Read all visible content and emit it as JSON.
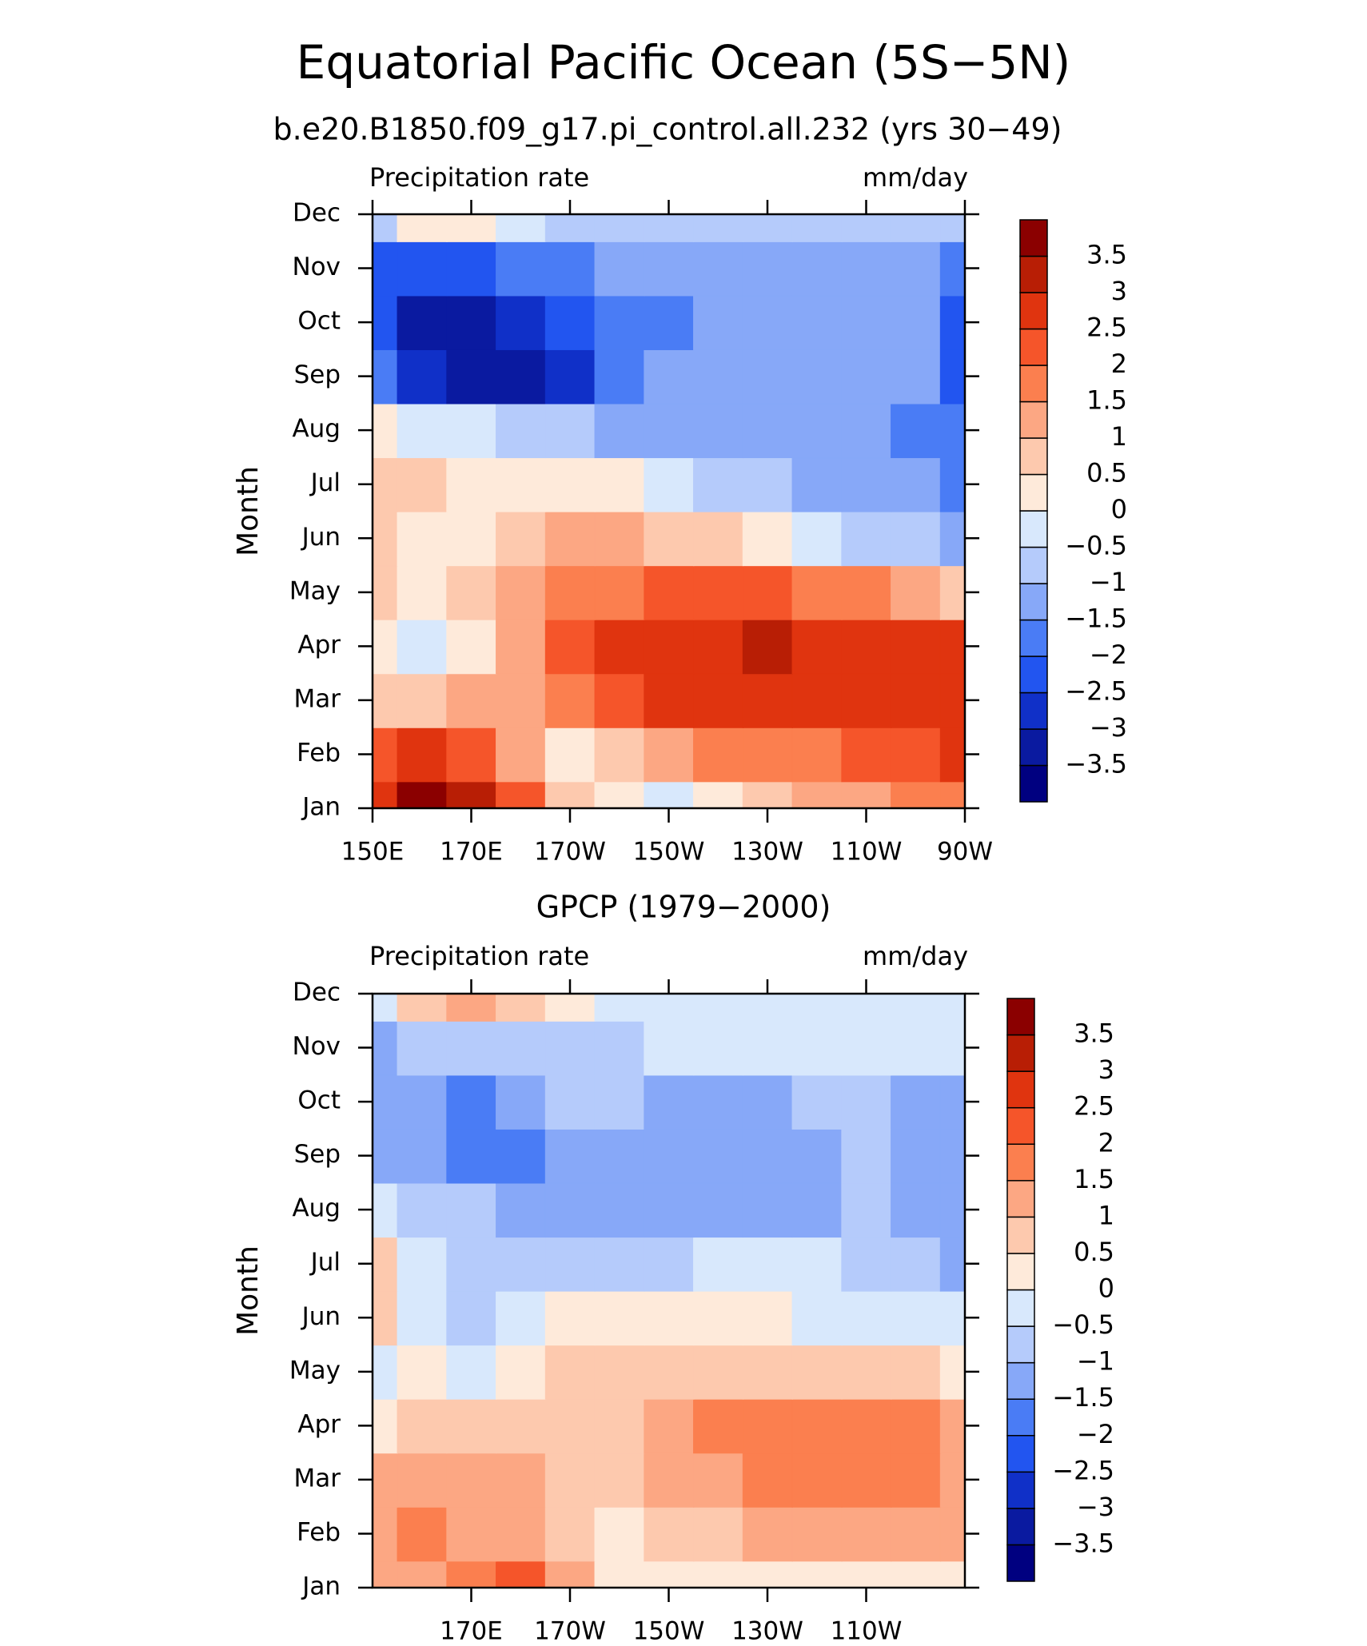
{
  "chart_data": [
    {
      "type": "contour",
      "title": "Equatorial Pacific Ocean (5S−5N)",
      "subtitle": "b.e20.B1850.f09_g17.pi_control.all.232 (yrs 30−49)",
      "left_label": "Precipitation rate",
      "right_label": "mm/day",
      "ylabel": "Month",
      "x": [
        150,
        160,
        170,
        180,
        190,
        200,
        210,
        220,
        230,
        240,
        250,
        260,
        270
      ],
      "xlim": [
        150,
        270
      ],
      "xticks": [
        {
          "value": 150,
          "label": "150E"
        },
        {
          "value": 170,
          "label": "170E"
        },
        {
          "value": 190,
          "label": "170W"
        },
        {
          "value": 210,
          "label": "150W"
        },
        {
          "value": 230,
          "label": "130W"
        },
        {
          "value": 250,
          "label": "110W"
        },
        {
          "value": 270,
          "label": "90W"
        }
      ],
      "categories": [
        "Jan",
        "Feb",
        "Mar",
        "Apr",
        "May",
        "Jun",
        "Jul",
        "Aug",
        "Sep",
        "Oct",
        "Nov",
        "Dec"
      ],
      "z": [
        [
          2.5,
          3.5,
          3,
          2,
          0.5,
          0,
          -0.3,
          0.3,
          0.8,
          1,
          1.3,
          1.5,
          1.5
        ],
        [
          2.2,
          2.5,
          2,
          1,
          0.3,
          0.8,
          1.2,
          1.5,
          1.8,
          1.8,
          2,
          2.2,
          2.5
        ],
        [
          0.5,
          0.8,
          1,
          1.2,
          1.5,
          2,
          2.5,
          2.7,
          2.7,
          2.8,
          2.8,
          2.7,
          2.8
        ],
        [
          0,
          -0.2,
          0.3,
          1,
          2,
          2.5,
          2.7,
          2.8,
          3.1,
          2.8,
          2.7,
          2.5,
          2.5
        ],
        [
          0.5,
          0.3,
          0.5,
          1,
          1.5,
          1.8,
          2,
          2,
          2,
          1.8,
          1.5,
          1.2,
          0.5
        ],
        [
          0.5,
          0,
          0.3,
          0.7,
          1,
          1,
          0.8,
          0.5,
          0.2,
          -0.2,
          -0.7,
          -1,
          -1.2
        ],
        [
          0.7,
          0.5,
          0.4,
          0.3,
          0.2,
          0,
          -0.3,
          -0.6,
          -0.9,
          -1.1,
          -1.2,
          -1.3,
          -1.6
        ],
        [
          0.2,
          -0.3,
          -0.5,
          -0.7,
          -0.9,
          -1.1,
          -1.2,
          -1.3,
          -1.3,
          -1.3,
          -1.3,
          -1.6,
          -2
        ],
        [
          -2,
          -2.7,
          -3.3,
          -3.2,
          -2.7,
          -2,
          -1.5,
          -1.3,
          -1.3,
          -1.3,
          -1.3,
          -1.5,
          -2.2
        ],
        [
          -2.5,
          -3.1,
          -3.2,
          -2.7,
          -2.4,
          -2,
          -1.6,
          -1.2,
          -1.2,
          -1.2,
          -1.2,
          -1.3,
          -2.2
        ],
        [
          -2.3,
          -2.5,
          -2.2,
          -2,
          -1.7,
          -1.5,
          -1.2,
          -1.2,
          -1.2,
          -1.2,
          -1.2,
          -1.2,
          -1.8
        ],
        [
          -0.7,
          0,
          0.3,
          -0.5,
          -0.7,
          -0.8,
          -0.8,
          -0.8,
          -0.8,
          -0.8,
          -0.8,
          -0.8,
          -0.8
        ]
      ],
      "levels": [
        {
          "value": -3.5,
          "label": "−3.5"
        },
        {
          "value": -3,
          "label": "−3"
        },
        {
          "value": -2.5,
          "label": "−2.5"
        },
        {
          "value": -2,
          "label": "−2"
        },
        {
          "value": -1.5,
          "label": "−1.5"
        },
        {
          "value": -1,
          "label": "−1"
        },
        {
          "value": -0.5,
          "label": "−0.5"
        },
        0,
        0.5,
        1,
        1.5,
        2,
        2.5,
        3,
        3.5
      ],
      "colors": [
        "#000080",
        "#0a1aa0",
        "#1030c8",
        "#2255f0",
        "#4a7cf5",
        "#87a8f8",
        "#b5cbfb",
        "#d8e8fc",
        "#feeada",
        "#fdc9ae",
        "#fca783",
        "#fb7f4f",
        "#f5552a",
        "#e0340f",
        "#b81e05",
        "#8b0000"
      ]
    },
    {
      "type": "contour",
      "title": "GPCP (1979−2000)",
      "left_label": "Precipitation rate",
      "right_label": "mm/day",
      "ylabel": "Month",
      "x": [
        150,
        160,
        170,
        180,
        190,
        200,
        210,
        220,
        230,
        240,
        250,
        260,
        270
      ],
      "xlim": [
        150,
        270
      ],
      "xticks": [
        {
          "value": 170,
          "label": "170E"
        },
        {
          "value": 190,
          "label": "170W"
        },
        {
          "value": 210,
          "label": "150W"
        },
        {
          "value": 230,
          "label": "130W"
        },
        {
          "value": 250,
          "label": "110W"
        }
      ],
      "categories": [
        "Jan",
        "Feb",
        "Mar",
        "Apr",
        "May",
        "Jun",
        "Jul",
        "Aug",
        "Sep",
        "Oct",
        "Nov",
        "Dec"
      ],
      "z": [
        [
          1,
          1.2,
          1.5,
          2,
          1,
          0.3,
          0.2,
          0.1,
          0.1,
          0.1,
          0.2,
          0.2,
          0.3
        ],
        [
          1.2,
          1.5,
          1,
          1.3,
          0.8,
          0.4,
          0.7,
          0.8,
          1,
          1.1,
          1.1,
          1.2,
          1.3
        ],
        [
          1,
          1.3,
          1.2,
          1,
          0.5,
          0.6,
          1.1,
          1.4,
          1.6,
          1.7,
          1.6,
          1.8,
          1.4
        ],
        [
          0.4,
          0.8,
          0.7,
          0.6,
          0.8,
          0.8,
          1.2,
          1.6,
          1.8,
          1.9,
          1.6,
          1.9,
          1.3
        ],
        [
          -0.3,
          0,
          -0.4,
          0.1,
          0.6,
          0.8,
          0.9,
          0.9,
          0.8,
          0.7,
          0.6,
          0.5,
          0.3
        ],
        [
          0.5,
          -0.3,
          -0.6,
          -0.5,
          0.2,
          0.4,
          0.3,
          0.1,
          0,
          -0.1,
          -0.2,
          -0.3,
          -0.4
        ],
        [
          0.6,
          -0.4,
          -0.8,
          -0.7,
          -0.6,
          -0.6,
          -0.6,
          -0.5,
          -0.5,
          -0.5,
          -0.6,
          -0.7,
          -1.1
        ],
        [
          -0.5,
          -0.8,
          -1,
          -1.1,
          -1.1,
          -1.1,
          -1.3,
          -1.3,
          -1.3,
          -1.3,
          -1,
          -1.2,
          -1.3
        ],
        [
          -1.2,
          -1.3,
          -1.7,
          -1.6,
          -1.1,
          -1.1,
          -1.4,
          -1.4,
          -1.4,
          -1.4,
          -0.9,
          -1.2,
          -1.3
        ],
        [
          -1.1,
          -1.3,
          -1.7,
          -1.3,
          -0.9,
          -0.9,
          -1.2,
          -1.2,
          -1.2,
          -0.9,
          -0.8,
          -1.1,
          -1.2
        ],
        [
          -1.1,
          -0.7,
          -0.8,
          -0.6,
          -0.6,
          -0.6,
          -0.5,
          -0.4,
          -0.4,
          -0.3,
          -0.3,
          -0.4,
          -0.4
        ],
        [
          -0.2,
          0.8,
          1.2,
          0.7,
          0.3,
          -0.2,
          -0.3,
          -0.3,
          -0.2,
          -0.2,
          -0.2,
          -0.2,
          -0.3
        ]
      ],
      "levels": [
        {
          "value": -3.5,
          "label": "−3.5"
        },
        {
          "value": -3,
          "label": "−3"
        },
        {
          "value": -2.5,
          "label": "−2.5"
        },
        {
          "value": -2,
          "label": "−2"
        },
        {
          "value": -1.5,
          "label": "−1.5"
        },
        {
          "value": -1,
          "label": "−1"
        },
        {
          "value": -0.5,
          "label": "−0.5"
        },
        0,
        0.5,
        1,
        1.5,
        2,
        2.5,
        3,
        3.5
      ],
      "colors": [
        "#000080",
        "#0a1aa0",
        "#1030c8",
        "#2255f0",
        "#4a7cf5",
        "#87a8f8",
        "#b5cbfb",
        "#d8e8fc",
        "#feeada",
        "#fdc9ae",
        "#fca783",
        "#fb7f4f",
        "#f5552a",
        "#e0340f",
        "#b81e05",
        "#8b0000"
      ]
    }
  ]
}
